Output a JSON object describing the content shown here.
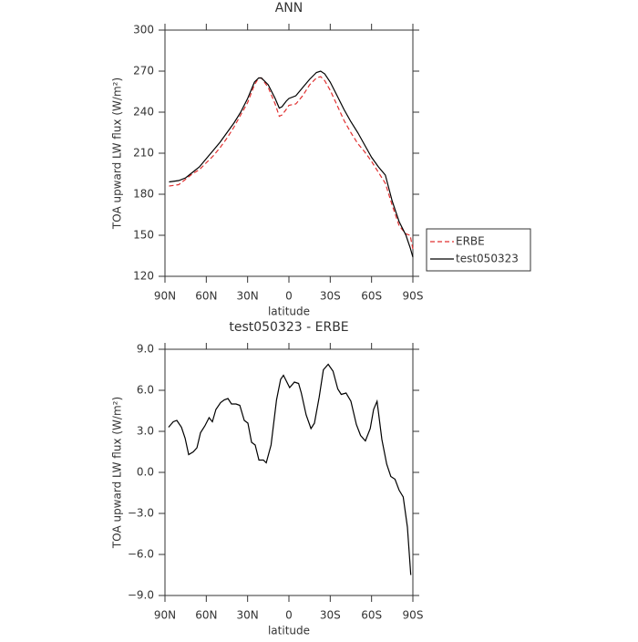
{
  "chart_data": [
    {
      "type": "line",
      "title": "ANN",
      "xlabel": "latitude",
      "ylabel": "TOA upward LW flux (W/m²)",
      "x": [
        87,
        80,
        75,
        70,
        65,
        60,
        55,
        50,
        45,
        40,
        35,
        30,
        25,
        22,
        20,
        15,
        10,
        7,
        5,
        2,
        0,
        -5,
        -10,
        -15,
        -20,
        -23,
        -26,
        -30,
        -35,
        -40,
        -45,
        -50,
        -55,
        -60,
        -65,
        -70,
        -75,
        -80,
        -85,
        -88,
        -90
      ],
      "series": [
        {
          "name": "ERBE",
          "color": "#e03030",
          "dash": true,
          "values": [
            186,
            187,
            191,
            195,
            198,
            203,
            208,
            214,
            221,
            229,
            238,
            247,
            260,
            265,
            265,
            258,
            246,
            237,
            238,
            242,
            245,
            246,
            252,
            260,
            265,
            266,
            263,
            256,
            245,
            234,
            225,
            217,
            211,
            204,
            196,
            188,
            172,
            157,
            151,
            150,
            140
          ]
        },
        {
          "name": "test050323",
          "color": "#000000",
          "dash": false,
          "values": [
            189,
            190,
            192,
            196,
            200,
            206,
            212,
            218,
            225,
            232,
            240,
            250,
            262,
            265,
            265,
            260,
            250,
            243,
            244,
            248,
            250,
            252,
            258,
            264,
            269,
            270,
            268,
            262,
            252,
            242,
            233,
            225,
            216,
            207,
            200,
            194,
            175,
            160,
            150,
            141,
            134
          ]
        }
      ],
      "xlim": [
        90,
        -90
      ],
      "xticks": [
        {
          "value": 90,
          "label": "90N"
        },
        {
          "value": 60,
          "label": "60N"
        },
        {
          "value": 30,
          "label": "30N"
        },
        0,
        {
          "value": -30,
          "label": "30S"
        },
        {
          "value": -60,
          "label": "60S"
        },
        {
          "value": -90,
          "label": "90S"
        }
      ],
      "ylim": [
        120,
        300
      ],
      "yticks": [
        120,
        150,
        180,
        210,
        240,
        270,
        300
      ],
      "legend": "right"
    },
    {
      "type": "line",
      "title": "test050323 - ERBE",
      "xlabel": "latitude",
      "ylabel": "TOA upward LW flux (W/m²)",
      "x": [
        87.4,
        84,
        81.4,
        78,
        75.4,
        72.8,
        69.5,
        66.8,
        64.2,
        61,
        58,
        55.6,
        53,
        49.6,
        47,
        44.3,
        41.7,
        38.4,
        35.7,
        32.4,
        29.8,
        27.1,
        24.5,
        21.8,
        18.5,
        16.5,
        13,
        9,
        6,
        4,
        -0.5,
        -4,
        -7,
        -9,
        -12.5,
        -16,
        -18.5,
        -22,
        -25,
        -28.5,
        -32,
        -35.5,
        -38,
        -41.5,
        -45,
        -49,
        -52,
        -55.5,
        -59,
        -61.5,
        -64,
        -67.5,
        -71,
        -74,
        -77,
        -80,
        -83,
        -86,
        -88.5
      ],
      "series": [
        {
          "name": "test050323 - ERBE",
          "color": "#000000",
          "dash": false,
          "values": [
            3.3,
            3.7,
            3.8,
            3.3,
            2.5,
            1.3,
            1.5,
            1.8,
            2.9,
            3.4,
            4.0,
            3.7,
            4.6,
            5.1,
            5.3,
            5.4,
            5.0,
            5.0,
            4.9,
            3.8,
            3.6,
            2.2,
            2.0,
            0.9,
            0.9,
            0.7,
            2.0,
            5.3,
            6.8,
            7.1,
            6.2,
            6.6,
            6.5,
            5.8,
            4.2,
            3.2,
            3.6,
            5.5,
            7.5,
            7.9,
            7.4,
            6.1,
            5.7,
            5.8,
            5.2,
            3.5,
            2.7,
            2.3,
            3.2,
            4.6,
            5.2,
            2.4,
            0.6,
            -0.3,
            -0.5,
            -1.3,
            -1.8,
            -4.0,
            -7.5
          ]
        }
      ],
      "xlim": [
        90,
        -90
      ],
      "xticks": [
        {
          "value": 90,
          "label": "90N"
        },
        {
          "value": 60,
          "label": "60N"
        },
        {
          "value": 30,
          "label": "30N"
        },
        0,
        {
          "value": -30,
          "label": "30S"
        },
        {
          "value": -60,
          "label": "60S"
        },
        {
          "value": -90,
          "label": "90S"
        }
      ],
      "ylim": [
        -9,
        9
      ],
      "yticks": [
        {
          "value": -9,
          "label": "−9.0"
        },
        {
          "value": -6,
          "label": "−6.0"
        },
        {
          "value": -3,
          "label": "−3.0"
        },
        {
          "value": 0,
          "label": "0.0"
        },
        {
          "value": 3,
          "label": "3.0"
        },
        {
          "value": 6,
          "label": "6.0"
        },
        {
          "value": 9,
          "label": "9.0"
        }
      ]
    }
  ]
}
